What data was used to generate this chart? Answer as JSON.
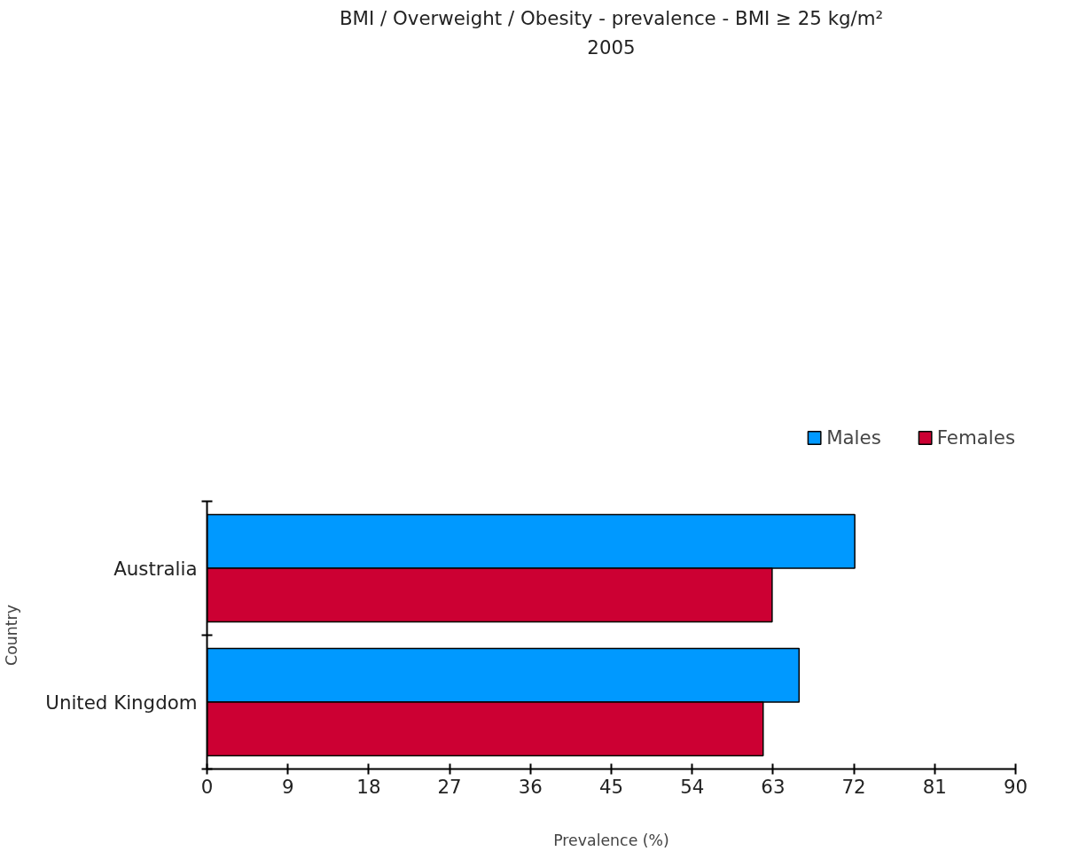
{
  "chart_data": {
    "type": "bar",
    "orientation": "horizontal",
    "title": "BMI / Overweight / Obesity - prevalence - BMI ≥ 25 kg/m²",
    "subtitle": "2005",
    "xlabel": "Prevalence (%)",
    "ylabel": "Country",
    "categories": [
      "Australia",
      "United Kingdom"
    ],
    "series": [
      {
        "name": "Males",
        "color": "#0099ff",
        "values": [
          72.1,
          65.9
        ]
      },
      {
        "name": "Females",
        "color": "#cc0033",
        "values": [
          62.9,
          61.9
        ]
      }
    ],
    "xlim": [
      0,
      90
    ],
    "xticks": [
      0,
      9,
      18,
      27,
      36,
      45,
      54,
      63,
      72,
      81,
      90
    ],
    "grid": false,
    "legend": "top right"
  }
}
